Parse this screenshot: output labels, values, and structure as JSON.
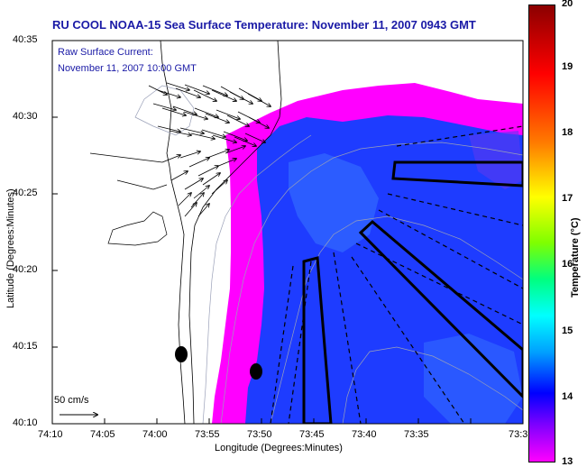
{
  "title": "RU COOL  NOAA-15  Sea Surface Temperature:  November 11, 2007 0943 GMT",
  "overlay": {
    "current_label": "Raw Surface Current:",
    "current_time": "November 11, 2007 10:00 GMT",
    "scale_label": "50 cm/s"
  },
  "axes": {
    "xlabel": "Longitude (Degrees:Minutes)",
    "ylabel": "Latitude (Degrees:Minutes)",
    "xticks": [
      "74:10",
      "74:05",
      "74:00",
      "73:55",
      "73:50",
      "73:45",
      "73:40",
      "73:35",
      "73:3"
    ],
    "yticks": [
      "40:35",
      "40:30",
      "40:25",
      "40:20",
      "40:15",
      "40:10"
    ]
  },
  "colorbar": {
    "title": "Temperature (°C)",
    "ticks": [
      "20",
      "19",
      "18",
      "17",
      "16",
      "15",
      "14",
      "13"
    ],
    "range": [
      13,
      20
    ]
  },
  "colors": {
    "title_text": "#1a1aa6",
    "sst_cold": "#ff00ff",
    "sst_main": "#1e3cff"
  }
}
